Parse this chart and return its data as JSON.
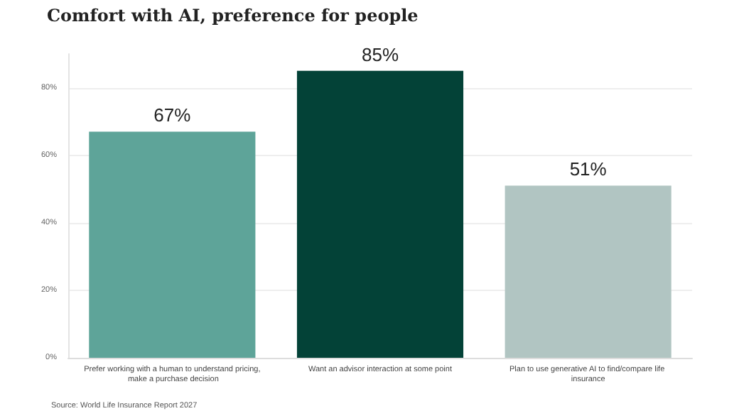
{
  "chart_data": {
    "type": "bar",
    "title": "Comfort with AI, preference for people",
    "categories": [
      "Prefer working with a human to understand pricing, make a purchase decision",
      "Want an advisor interaction at some point",
      "Plan to use generative AI to find/compare life insurance"
    ],
    "values": [
      67,
      85,
      51
    ],
    "colors": [
      "#5ea499",
      "#034237",
      "#b1c5c2"
    ],
    "value_labels": [
      "67%",
      "85%",
      "51%"
    ],
    "ylim": [
      0,
      90
    ],
    "yticks": [
      {
        "value": 0,
        "label": "0%"
      },
      {
        "value": 20,
        "label": "20%"
      },
      {
        "value": 40,
        "label": "40%"
      },
      {
        "value": 60,
        "label": "60%"
      },
      {
        "value": 80,
        "label": "80%"
      }
    ],
    "grid": "y",
    "annotations": [
      "Source: World Life Insurance Report 2027"
    ]
  }
}
